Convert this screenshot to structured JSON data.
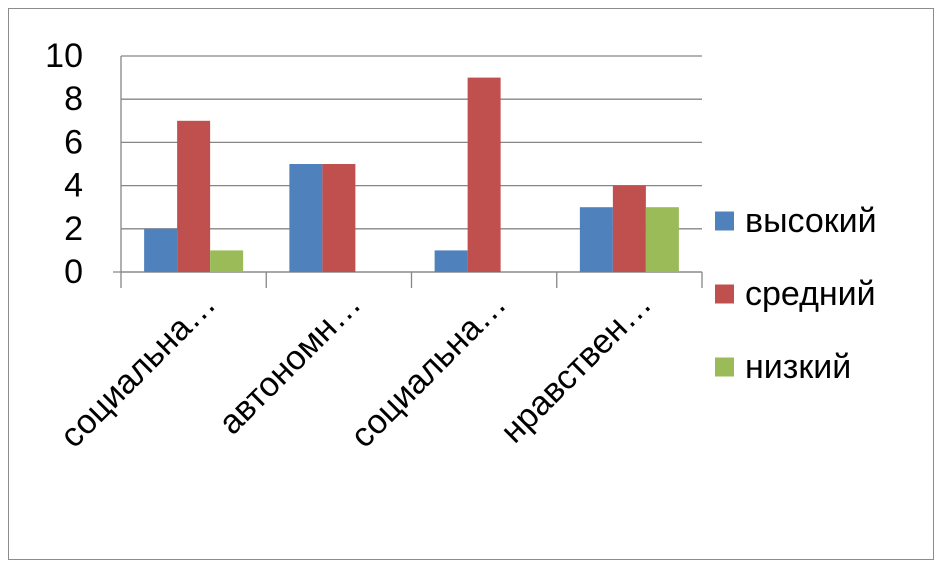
{
  "chart_data": {
    "type": "bar",
    "categories": [
      "социальна…",
      "автономн…",
      "социальна…",
      "нравствен…"
    ],
    "series": [
      {
        "name": "высокий",
        "values": [
          2,
          5,
          1,
          3
        ],
        "color": "#4F81BD"
      },
      {
        "name": "средний",
        "values": [
          7,
          5,
          9,
          4
        ],
        "color": "#C0504D"
      },
      {
        "name": "низкий",
        "values": [
          1,
          0,
          0,
          3
        ],
        "color": "#9BBB59"
      }
    ],
    "yticks": [
      0,
      2,
      4,
      6,
      8,
      10
    ],
    "ylim": [
      0,
      10
    ],
    "grid": true,
    "legend": "right",
    "title": "",
    "xlabel": "",
    "ylabel": ""
  }
}
